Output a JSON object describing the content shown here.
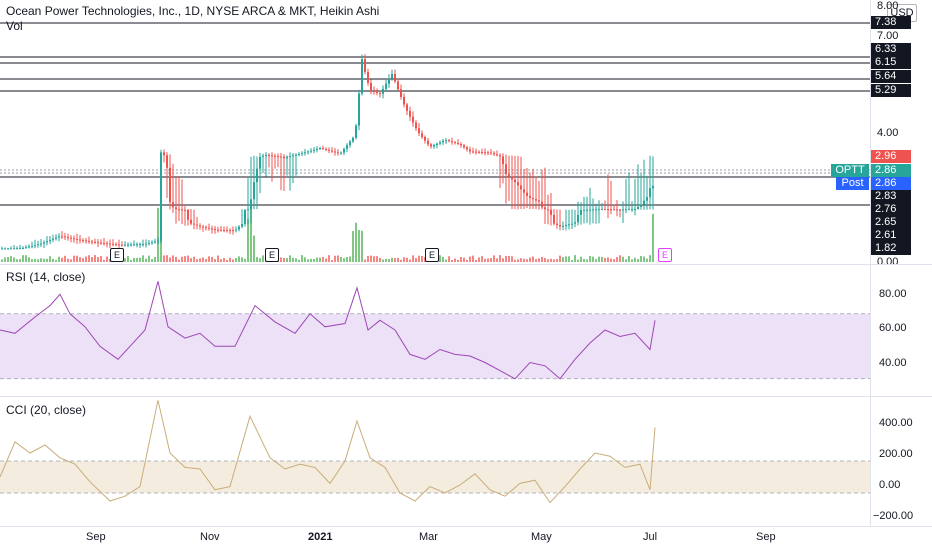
{
  "header": {
    "title": "Ocean Power Technologies, Inc., 1D, NYSE ARCA & MKT, Heikin Ashi",
    "volume_label": "Vol",
    "currency": "USD"
  },
  "price_axis": {
    "ticks": [
      "8.00",
      "7.00",
      "4.00",
      "0.00"
    ],
    "levels": [
      {
        "label": "7.38",
        "value": 7.38,
        "style": "black"
      },
      {
        "label": "6.33",
        "value": 6.33,
        "style": "black"
      },
      {
        "label": "6.15",
        "value": 6.15,
        "style": "black"
      },
      {
        "label": "5.64",
        "value": 5.64,
        "style": "black"
      },
      {
        "label": "5.29",
        "value": 5.29,
        "style": "black"
      },
      {
        "label": "2.96",
        "value": 2.96,
        "style": "red"
      },
      {
        "label": "2.86",
        "value": 2.86,
        "style": "teal"
      },
      {
        "label": "2.86",
        "value": 2.86,
        "style": "blue"
      },
      {
        "label": "2.83",
        "value": 2.83,
        "style": "black"
      },
      {
        "label": "2.76",
        "value": 2.76,
        "style": "black"
      },
      {
        "label": "2.65",
        "value": 2.65,
        "style": "black"
      },
      {
        "label": "2.61",
        "value": 2.61,
        "style": "black"
      },
      {
        "label": "1.82",
        "value": 1.82,
        "style": "black"
      }
    ],
    "symbol_tag": "OPTT",
    "post_tag": "Post"
  },
  "earnings_markers": [
    {
      "label": "E",
      "past": true
    },
    {
      "label": "E",
      "past": true
    },
    {
      "label": "E",
      "past": true
    },
    {
      "label": "E",
      "past": false
    }
  ],
  "rsi": {
    "label": "RSI (14, close)",
    "ticks": [
      "80.00",
      "60.00",
      "40.00"
    ],
    "upper": 70,
    "lower": 30,
    "ylim": [
      20,
      100
    ]
  },
  "cci": {
    "label": "CCI (20, close)",
    "ticks": [
      "400.00",
      "200.00",
      "0.00",
      "−200.00"
    ],
    "upper": 100,
    "lower": -100,
    "ylim": [
      -300,
      500
    ]
  },
  "time_axis": {
    "labels": [
      "Sep",
      "Nov",
      "2021",
      "Mar",
      "May",
      "Jul",
      "Sep"
    ]
  },
  "colors": {
    "up": "#26a69a",
    "down": "#ef5350",
    "rsi_line": "#9c47b4",
    "rsi_band": "#ede1f7",
    "cci_line": "#c9ad7a",
    "cci_band": "#f4ecde",
    "volume_up": "#4caf50",
    "volume_down": "#ef5350",
    "post_blue": "#2962ff",
    "earn_future": "#e040fb"
  },
  "chart_data": {
    "type": "candlestick",
    "title": "Ocean Power Technologies, Inc., 1D, NYSE ARCA & MKT, Heikin Ashi",
    "x_months": [
      "Sep",
      "Nov",
      "2021",
      "Mar",
      "May",
      "Jul",
      "Sep"
    ],
    "y_ticks": [
      0,
      4,
      7,
      8
    ],
    "price_path": [
      [
        0,
        1.75
      ],
      [
        20,
        1.8
      ],
      [
        40,
        1.95
      ],
      [
        60,
        2.2
      ],
      [
        75,
        2.1
      ],
      [
        95,
        2.0
      ],
      [
        120,
        1.92
      ],
      [
        145,
        1.95
      ],
      [
        158,
        2.05
      ],
      [
        160,
        3.2
      ],
      [
        170,
        2.8
      ],
      [
        185,
        2.65
      ],
      [
        200,
        2.5
      ],
      [
        215,
        2.4
      ],
      [
        235,
        2.38
      ],
      [
        250,
        2.8
      ],
      [
        265,
        3.05
      ],
      [
        285,
        2.95
      ],
      [
        300,
        3.1
      ],
      [
        320,
        3.35
      ],
      [
        340,
        3.1
      ],
      [
        355,
        3.9
      ],
      [
        362,
        6.2
      ],
      [
        370,
        5.3
      ],
      [
        380,
        5.2
      ],
      [
        392,
        5.8
      ],
      [
        405,
        4.8
      ],
      [
        415,
        4.2
      ],
      [
        430,
        3.4
      ],
      [
        445,
        3.7
      ],
      [
        460,
        3.5
      ],
      [
        470,
        3.2
      ],
      [
        490,
        3.15
      ],
      [
        505,
        2.9
      ],
      [
        520,
        2.85
      ],
      [
        540,
        2.8
      ],
      [
        560,
        2.5
      ],
      [
        580,
        2.65
      ],
      [
        600,
        2.75
      ],
      [
        620,
        2.7
      ],
      [
        640,
        2.78
      ],
      [
        650,
        2.85
      ],
      [
        655,
        2.86
      ]
    ],
    "rsi_path": [
      [
        0,
        60
      ],
      [
        15,
        58
      ],
      [
        35,
        68
      ],
      [
        50,
        75
      ],
      [
        60,
        82
      ],
      [
        70,
        70
      ],
      [
        85,
        62
      ],
      [
        100,
        50
      ],
      [
        118,
        42
      ],
      [
        130,
        50
      ],
      [
        145,
        60
      ],
      [
        158,
        90
      ],
      [
        168,
        62
      ],
      [
        185,
        55
      ],
      [
        200,
        58
      ],
      [
        215,
        50
      ],
      [
        235,
        50
      ],
      [
        255,
        75
      ],
      [
        275,
        65
      ],
      [
        295,
        58
      ],
      [
        310,
        70
      ],
      [
        325,
        62
      ],
      [
        345,
        64
      ],
      [
        357,
        86
      ],
      [
        368,
        60
      ],
      [
        380,
        66
      ],
      [
        395,
        60
      ],
      [
        410,
        45
      ],
      [
        425,
        42
      ],
      [
        440,
        48
      ],
      [
        455,
        45
      ],
      [
        470,
        44
      ],
      [
        485,
        40
      ],
      [
        500,
        35
      ],
      [
        515,
        30
      ],
      [
        530,
        40
      ],
      [
        545,
        38
      ],
      [
        560,
        30
      ],
      [
        575,
        42
      ],
      [
        590,
        52
      ],
      [
        605,
        60
      ],
      [
        620,
        56
      ],
      [
        635,
        58
      ],
      [
        650,
        48
      ],
      [
        655,
        66
      ]
    ],
    "cci_path": [
      [
        0,
        0
      ],
      [
        15,
        220
      ],
      [
        30,
        150
      ],
      [
        45,
        200
      ],
      [
        60,
        120
      ],
      [
        75,
        80
      ],
      [
        90,
        -30
      ],
      [
        110,
        -150
      ],
      [
        125,
        -120
      ],
      [
        140,
        -60
      ],
      [
        158,
        480
      ],
      [
        170,
        150
      ],
      [
        185,
        60
      ],
      [
        200,
        50
      ],
      [
        215,
        -80
      ],
      [
        230,
        -60
      ],
      [
        250,
        380
      ],
      [
        270,
        120
      ],
      [
        285,
        50
      ],
      [
        300,
        80
      ],
      [
        315,
        60
      ],
      [
        330,
        -40
      ],
      [
        345,
        100
      ],
      [
        357,
        350
      ],
      [
        370,
        120
      ],
      [
        385,
        60
      ],
      [
        400,
        -100
      ],
      [
        415,
        -150
      ],
      [
        430,
        -60
      ],
      [
        445,
        -100
      ],
      [
        460,
        -50
      ],
      [
        475,
        20
      ],
      [
        490,
        -80
      ],
      [
        505,
        -120
      ],
      [
        520,
        -40
      ],
      [
        535,
        -20
      ],
      [
        550,
        -160
      ],
      [
        565,
        -60
      ],
      [
        580,
        50
      ],
      [
        595,
        150
      ],
      [
        610,
        130
      ],
      [
        625,
        60
      ],
      [
        640,
        80
      ],
      [
        650,
        -80
      ],
      [
        655,
        310
      ]
    ]
  }
}
